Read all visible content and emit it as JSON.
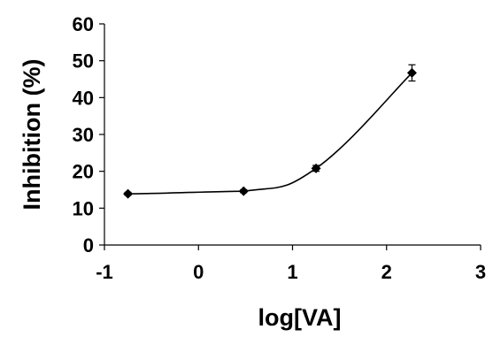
{
  "chart_data": {
    "type": "scatter",
    "xlabel": "log[VA]",
    "ylabel": "Inhibition (%)",
    "xlim": [
      -1,
      3
    ],
    "ylim": [
      0,
      60
    ],
    "xticks": [
      "-1",
      "0",
      "1",
      "2",
      "3"
    ],
    "yticks": [
      "0",
      "10",
      "20",
      "30",
      "40",
      "50",
      "60"
    ],
    "grid": false,
    "marker": "diamond",
    "series": [
      {
        "x": [
          -0.75,
          0.48,
          1.25,
          2.27
        ],
        "y": [
          13.9,
          14.6,
          20.8,
          46.7
        ],
        "error": [
          0.4,
          0.4,
          0.8,
          2.2
        ]
      }
    ],
    "fit_curve": "smooth sigmoidal fit through points"
  }
}
